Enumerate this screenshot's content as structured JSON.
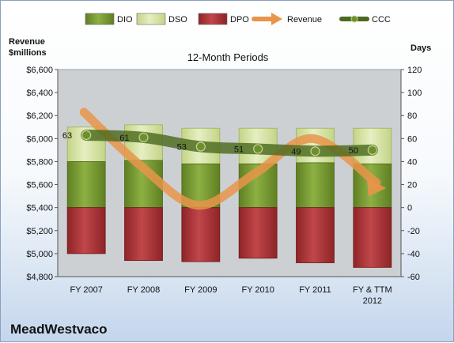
{
  "chart_data": {
    "type": "bar",
    "title": "12-Month Periods",
    "company": "MeadWestvaco",
    "left_axis_label": [
      "Revenue",
      "$millions"
    ],
    "right_axis_label": "Days",
    "categories": [
      [
        "FY 2007"
      ],
      [
        "FY 2008"
      ],
      [
        "FY 2009"
      ],
      [
        "FY 2010"
      ],
      [
        "FY 2011"
      ],
      [
        "FY & TTM",
        "2012"
      ]
    ],
    "left_axis": {
      "min": 4800,
      "max": 6600,
      "step": 200,
      "prefix": "$"
    },
    "right_axis": {
      "min": -60,
      "max": 120,
      "step": 20
    },
    "series": [
      {
        "name": "DIO",
        "axis": "right",
        "kind": "stacked-bar",
        "color": "#7a9c35",
        "values": [
          40,
          41,
          38,
          38,
          39,
          38
        ]
      },
      {
        "name": "DSO",
        "axis": "right",
        "kind": "stacked-bar",
        "color": "#d7e4a4",
        "values": [
          30,
          31,
          31,
          31,
          30,
          31
        ]
      },
      {
        "name": "DPO",
        "axis": "right",
        "kind": "negative-bar",
        "color": "#b3393b",
        "values": [
          -40,
          -46,
          -47,
          -44,
          -48,
          -52
        ]
      },
      {
        "name": "Revenue",
        "axis": "left",
        "kind": "line",
        "color": "#e8954a",
        "values": [
          6230,
          5760,
          5420,
          5700,
          6000,
          5520
        ]
      },
      {
        "name": "CCC",
        "axis": "right",
        "kind": "line",
        "color": "#4c6a1e",
        "values": [
          63,
          61,
          53,
          51,
          49,
          50
        ],
        "labels": [
          "63",
          "61",
          "53",
          "51",
          "49",
          "50"
        ]
      }
    ],
    "legend": [
      {
        "name": "DIO",
        "symbol": "bar",
        "color": "#7a9c35"
      },
      {
        "name": "DSO",
        "symbol": "bar",
        "color": "#d7e4a4"
      },
      {
        "name": "DPO",
        "symbol": "bar",
        "color": "#b3393b"
      },
      {
        "name": "Revenue",
        "symbol": "arrow",
        "color": "#e8954a"
      },
      {
        "name": "CCC",
        "symbol": "dot-line",
        "color": "#4c6a1e"
      }
    ],
    "legend_position": "top",
    "grid": false
  }
}
